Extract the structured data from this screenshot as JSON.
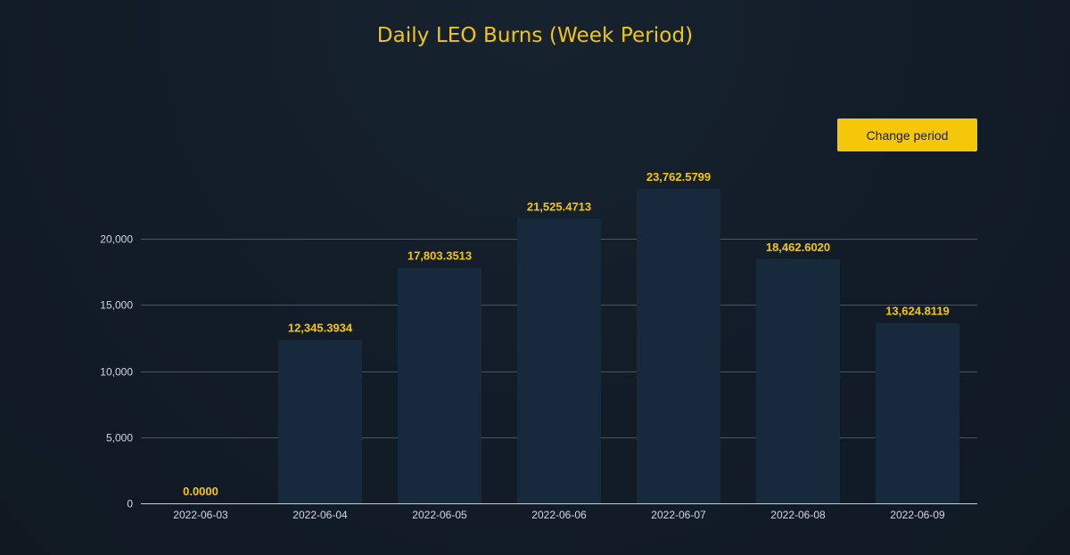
{
  "header": {
    "title": "Daily LEO Burns (Week Period)"
  },
  "controls": {
    "change_period_label": "Change period"
  },
  "colors": {
    "accent": "#f5c70a",
    "bar": "#172a3c",
    "grid": "#4a5561",
    "background": "#121d28"
  },
  "chart_data": {
    "type": "bar",
    "title": "Daily LEO Burns (Week Period)",
    "categories": [
      "2022-06-03",
      "2022-06-04",
      "2022-06-05",
      "2022-06-06",
      "2022-06-07",
      "2022-06-08",
      "2022-06-09"
    ],
    "values": [
      0,
      12345.3934,
      17803.3513,
      21525.4713,
      23762.5799,
      18462.602,
      13624.8119
    ],
    "value_labels": [
      "0.0000",
      "12,345.3934",
      "17,803.3513",
      "21,525.4713",
      "23,762.5799",
      "18,462.6020",
      "13,624.8119"
    ],
    "yticks": [
      0,
      5000,
      10000,
      15000,
      20000
    ],
    "ytick_labels": [
      "0",
      "5,000",
      "10,000",
      "15,000",
      "20,000"
    ],
    "ylim": [
      0,
      25000
    ],
    "xlabel": "",
    "ylabel": "",
    "grid": true,
    "legend": "none"
  }
}
